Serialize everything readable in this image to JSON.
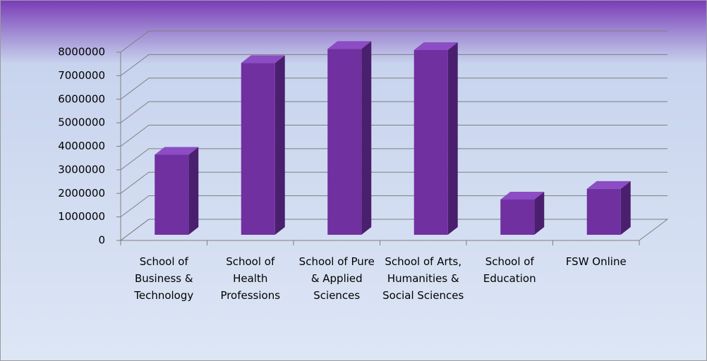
{
  "chart_data": {
    "type": "bar3d",
    "categories": [
      "School of Business & Technology",
      "School of Health Professions",
      "School of Pure & Applied Sciences",
      "School of Arts, Humanities & Social Sciences",
      "School of Education",
      "FSW Online"
    ],
    "values": [
      3400000,
      7300000,
      7900000,
      7850000,
      1500000,
      1950000
    ],
    "color": "#7030a0",
    "ylim": [
      0,
      8000000
    ],
    "yticks": [
      0,
      1000000,
      2000000,
      3000000,
      4000000,
      5000000,
      6000000,
      7000000,
      8000000
    ],
    "grid": true
  }
}
